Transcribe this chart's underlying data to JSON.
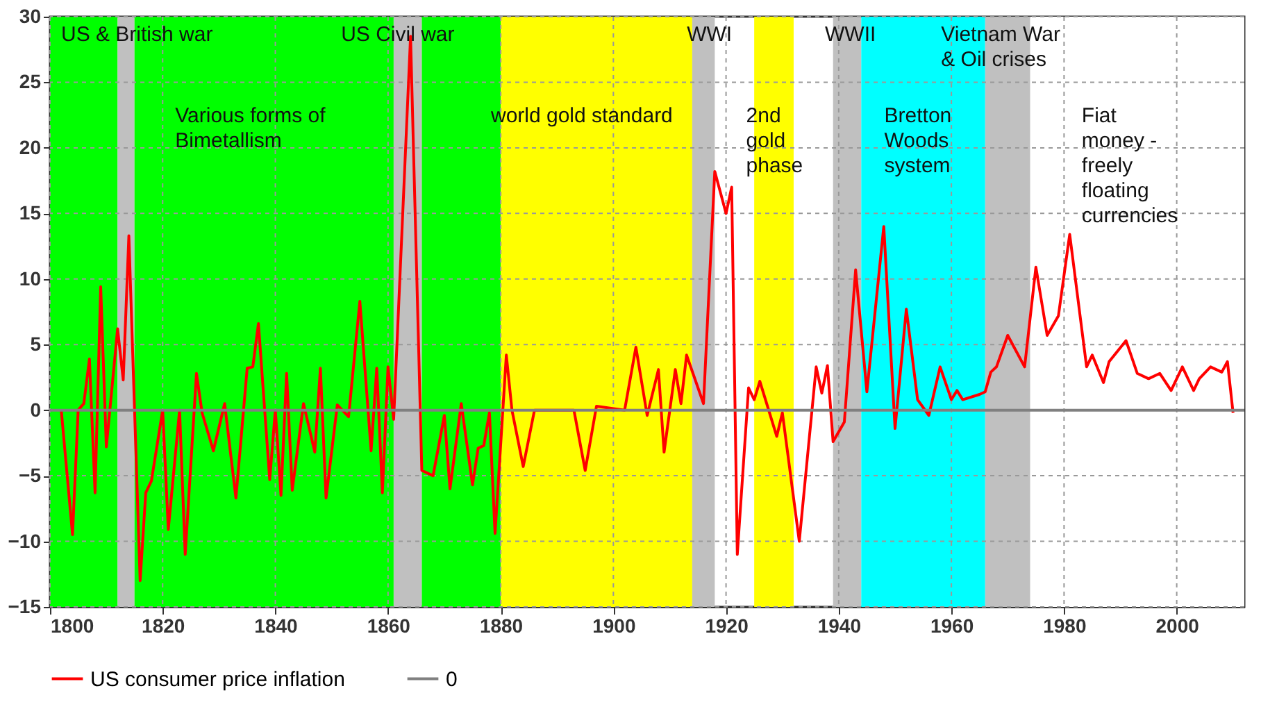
{
  "chart_data": {
    "type": "line",
    "xlim": [
      1800,
      2012
    ],
    "xticks": [
      1800,
      1820,
      1840,
      1860,
      1880,
      1900,
      1920,
      1940,
      1960,
      1980,
      2000
    ],
    "ylim": [
      -15,
      30
    ],
    "yticks": [
      -15,
      -10,
      -5,
      0,
      5,
      10,
      15,
      20,
      25,
      30
    ],
    "grid": true,
    "legend": "bottom",
    "line_style": "solid",
    "marker": "none",
    "bands": [
      {
        "axis": "x",
        "from": 1800,
        "to": 1812,
        "color": "#00ff00"
      },
      {
        "axis": "x",
        "from": 1812,
        "to": 1815,
        "color": "#c0c0c0",
        "label": "US & British war"
      },
      {
        "axis": "x",
        "from": 1815,
        "to": 1861,
        "color": "#00ff00",
        "label": "Various forms of\nBimetallism"
      },
      {
        "axis": "x",
        "from": 1861,
        "to": 1866,
        "color": "#c0c0c0",
        "label": "US Civil war"
      },
      {
        "axis": "x",
        "from": 1866,
        "to": 1880,
        "color": "#00ff00"
      },
      {
        "axis": "x",
        "from": 1880,
        "to": 1914,
        "color": "#ffff00",
        "label": "world gold standard"
      },
      {
        "axis": "x",
        "from": 1914,
        "to": 1918,
        "color": "#c0c0c0",
        "label": "WWI"
      },
      {
        "axis": "x",
        "from": 1925,
        "to": 1932,
        "color": "#ffff00",
        "label": "2nd\ngold\nphase"
      },
      {
        "axis": "x",
        "from": 1939,
        "to": 1944,
        "color": "#c0c0c0",
        "label": "WWII"
      },
      {
        "axis": "x",
        "from": 1944,
        "to": 1966,
        "color": "#00ffff",
        "label": "Bretton\nWoods\nsystem"
      },
      {
        "axis": "x",
        "from": 1966,
        "to": 1974,
        "color": "#c0c0c0",
        "label": "Vietnam War\n& Oil crises"
      },
      {
        "axis": "x",
        "from": 1974,
        "to": 2012,
        "color": "#ffffff",
        "label": "Fiat\nmoney -\nfreely\nfloating\ncurrencies"
      }
    ],
    "series": [
      {
        "name": "US consumer price inflation",
        "color": "#ff0000",
        "x": [
          1802,
          1804,
          1805,
          1806,
          1807,
          1808,
          1809,
          1810,
          1812,
          1813,
          1814,
          1816,
          1817,
          1818,
          1820,
          1821,
          1823,
          1824,
          1826,
          1827,
          1829,
          1831,
          1833,
          1835,
          1836,
          1837,
          1839,
          1840,
          1841,
          1842,
          1843,
          1845,
          1847,
          1848,
          1849,
          1851,
          1853,
          1855,
          1857,
          1858,
          1859,
          1860,
          1861,
          1864,
          1866,
          1868,
          1870,
          1871,
          1873,
          1875,
          1876,
          1877,
          1878,
          1879,
          1881,
          1882,
          1884,
          1886,
          1893,
          1895,
          1897,
          1902,
          1904,
          1906,
          1908,
          1909,
          1911,
          1912,
          1913,
          1916,
          1918,
          1920,
          1921,
          1922,
          1924,
          1925,
          1926,
          1929,
          1930,
          1933,
          1936,
          1937,
          1938,
          1939,
          1941,
          1943,
          1945,
          1948,
          1950,
          1952,
          1954,
          1956,
          1958,
          1960,
          1961,
          1962,
          1965,
          1966,
          1967,
          1968,
          1970,
          1973,
          1975,
          1977,
          1979,
          1981,
          1984,
          1985,
          1987,
          1988,
          1991,
          1993,
          1995,
          1997,
          1999,
          2001,
          2003,
          2004,
          2006,
          2008,
          2009,
          2010
        ],
        "values": [
          0,
          -9.5,
          0,
          0.5,
          3.9,
          -6.3,
          9.4,
          -2.8,
          6.2,
          2.3,
          13.3,
          -13,
          -6.3,
          -5.4,
          0,
          -9.1,
          0,
          -11,
          2.8,
          -0.2,
          -3.1,
          0.5,
          -6.7,
          3.2,
          3.3,
          6.6,
          -5.3,
          0,
          -6.5,
          2.8,
          -6.1,
          0.5,
          -3.2,
          3.2,
          -6.7,
          0.4,
          -0.5,
          8.3,
          -3.1,
          3.2,
          -6.3,
          3.3,
          -0.7,
          28.5,
          -4.6,
          -5,
          -0.4,
          -6,
          0.5,
          -5.7,
          -2.9,
          -2.7,
          -0.2,
          -9.4,
          4.2,
          0,
          -4.3,
          0,
          0,
          -4.6,
          0.3,
          0,
          4.8,
          -0.4,
          3.1,
          -3.2,
          3.1,
          0.5,
          4.2,
          0.5,
          18.2,
          15,
          17,
          -11,
          1.7,
          0.8,
          2.2,
          -2,
          -0.2,
          -10,
          3.3,
          1.3,
          3.4,
          -2.4,
          -0.9,
          10.7,
          1.4,
          14,
          -1.4,
          7.7,
          0.8,
          -0.4,
          3.3,
          0.8,
          1.5,
          0.8,
          1.2,
          1.4,
          2.9,
          3.3,
          5.7,
          3.3,
          10.9,
          5.7,
          7.2,
          13.4,
          3.3,
          4.2,
          2.1,
          3.7,
          5.3,
          2.8,
          2.4,
          2.8,
          1.5,
          3.3,
          1.5,
          2.4,
          3.3,
          2.9,
          3.7,
          -0.2
        ]
      },
      {
        "name": "0",
        "color": "#808080",
        "x": [
          1800,
          2012
        ],
        "values": [
          0,
          0
        ]
      }
    ]
  }
}
